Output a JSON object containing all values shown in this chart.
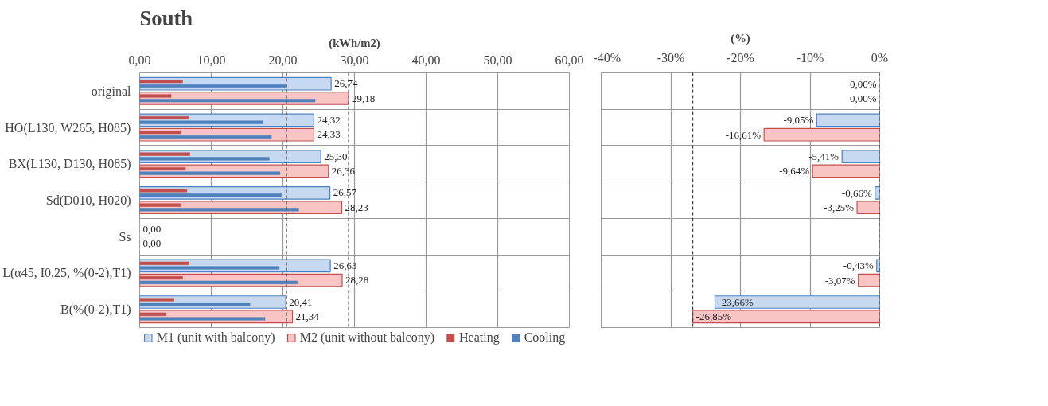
{
  "chart_data": [
    {
      "type": "bar",
      "orientation": "horizontal",
      "title": "South",
      "xlabel": "(kWh/m2)",
      "categories": [
        "original",
        "HO(L130, W265, H085)",
        "BX(L130, D130, H085)",
        "Sd(D010, H020)",
        "Ss",
        "L(α45, I0.25, %(0-2),T1)",
        "B(%(0-2),T1)"
      ],
      "series": [
        {
          "name": "M1 (unit with balcony)",
          "color": "#c6d9f1",
          "values": [
            26.74,
            24.32,
            25.3,
            26.57,
            0,
            26.63,
            20.41
          ],
          "value_labels": [
            "26,74",
            "24,32",
            "25,30",
            "26,57",
            "0,00",
            "26,63",
            "20,41"
          ]
        },
        {
          "name": "M2 (unit without balcony)",
          "color": "#f8c4c4",
          "values": [
            29.18,
            24.33,
            26.36,
            28.23,
            0,
            28.28,
            21.34
          ],
          "value_labels": [
            "29,18",
            "24,33",
            "26,36",
            "28,23",
            "0,00",
            "28,28",
            "21,34"
          ]
        },
        {
          "name": "Heating",
          "color": "#c0504d",
          "values": [
            6.0,
            6.9,
            7.0,
            6.6,
            0,
            6.9,
            4.8
          ]
        },
        {
          "name": "Cooling",
          "color": "#4f81bd",
          "values": [
            20.5,
            17.2,
            18.1,
            19.8,
            0,
            19.5,
            15.4
          ]
        },
        {
          "color": "#c0504d",
          "values": [
            4.4,
            5.7,
            6.4,
            5.7,
            0,
            6.0,
            3.7
          ]
        },
        {
          "color": "#4f81bd",
          "values": [
            24.5,
            18.4,
            19.6,
            22.2,
            0,
            22.0,
            17.5
          ]
        }
      ],
      "xlim": [
        0,
        60
      ],
      "xticks": [
        {
          "value": 0,
          "label": "0,00"
        },
        {
          "value": 10,
          "label": "10,00"
        },
        {
          "value": 20,
          "label": "20,00"
        },
        {
          "value": 30,
          "label": "30,00"
        },
        {
          "value": 40,
          "label": "40,00"
        },
        {
          "value": 50,
          "label": "50,00"
        },
        {
          "value": 60,
          "label": "60,00"
        }
      ],
      "grid": true,
      "legend": "bottom",
      "ref_lines": [
        {
          "axis": "x",
          "value": 20.5,
          "color": "#404040",
          "line_style": "dashed"
        },
        {
          "axis": "x",
          "value": 29.18,
          "color": "#404040",
          "line_style": "dashed"
        }
      ]
    },
    {
      "type": "bar",
      "orientation": "horizontal",
      "xlabel": "(%)",
      "categories": [
        null,
        null,
        null,
        null,
        null,
        null,
        null
      ],
      "series": [
        {
          "color": "#c6d9f1",
          "values": [
            0,
            -9.05,
            -5.41,
            -0.66,
            null,
            -0.43,
            -23.66
          ],
          "value_labels": [
            "0,00%",
            "-9,05%",
            "-5,41%",
            "-0,66%",
            null,
            "-0,43%",
            "-23,66%"
          ]
        },
        {
          "color": "#f8c4c4",
          "values": [
            0,
            -16.61,
            -9.64,
            -3.25,
            null,
            -3.07,
            -26.85
          ],
          "value_labels": [
            "0,00%",
            "-16,61%",
            "-9,64%",
            "-3,25%",
            null,
            "-3,07%",
            "-26,85%"
          ]
        }
      ],
      "xlim": [
        -40,
        0
      ],
      "xticks": [
        {
          "value": -40,
          "label": "-40%"
        },
        {
          "value": -30,
          "label": "-30%"
        },
        {
          "value": -20,
          "label": "-20%"
        },
        {
          "value": -10,
          "label": "-10%"
        },
        {
          "value": 0,
          "label": "0%"
        }
      ],
      "grid": true,
      "tick_labels": "x",
      "ref_lines": [
        {
          "axis": "x",
          "value": -26.85,
          "color": "#404040",
          "line_style": "dashed"
        },
        {
          "axis": "x",
          "value": 0,
          "color": "#404040",
          "line_style": "dashed"
        }
      ]
    }
  ]
}
